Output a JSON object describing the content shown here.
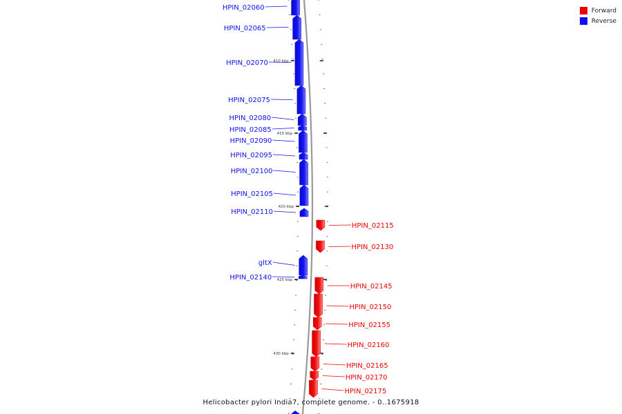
{
  "title": "Helicobacter pylori India7, complete genome. - 0..1675918",
  "legend": [
    {
      "label": "Forward",
      "color": "#ee0000"
    },
    {
      "label": "Reverse",
      "color": "#1010ee"
    }
  ],
  "colors": {
    "forward": "#ee0000",
    "reverse": "#1010ee",
    "backbone": "#888888"
  },
  "scale_labels_kbp": [
    "410 kbp",
    "415 kbp",
    "420 kbp",
    "425 kbp",
    "430 kbp"
  ],
  "genes": [
    {
      "name": "HPIN_02060",
      "strand": "reverse"
    },
    {
      "name": "HPIN_02065",
      "strand": "reverse"
    },
    {
      "name": "HPIN_02070",
      "strand": "reverse"
    },
    {
      "name": "HPIN_02075",
      "strand": "reverse"
    },
    {
      "name": "HPIN_02080",
      "strand": "reverse"
    },
    {
      "name": "HPIN_02085",
      "strand": "reverse"
    },
    {
      "name": "HPIN_02090",
      "strand": "reverse"
    },
    {
      "name": "HPIN_02095",
      "strand": "reverse"
    },
    {
      "name": "HPIN_02100",
      "strand": "reverse"
    },
    {
      "name": "HPIN_02105",
      "strand": "reverse"
    },
    {
      "name": "HPIN_02110",
      "strand": "reverse"
    },
    {
      "name": "HPIN_02115",
      "strand": "forward"
    },
    {
      "name": "HPIN_02130",
      "strand": "forward"
    },
    {
      "name": "gltX",
      "strand": "reverse"
    },
    {
      "name": "HPIN_02140",
      "strand": "reverse"
    },
    {
      "name": "HPIN_02145",
      "strand": "forward"
    },
    {
      "name": "HPIN_02150",
      "strand": "forward"
    },
    {
      "name": "HPIN_02155",
      "strand": "forward"
    },
    {
      "name": "HPIN_02160",
      "strand": "forward"
    },
    {
      "name": "HPIN_02165",
      "strand": "forward"
    },
    {
      "name": "HPIN_02170",
      "strand": "forward"
    },
    {
      "name": "HPIN_02175",
      "strand": "forward"
    }
  ]
}
